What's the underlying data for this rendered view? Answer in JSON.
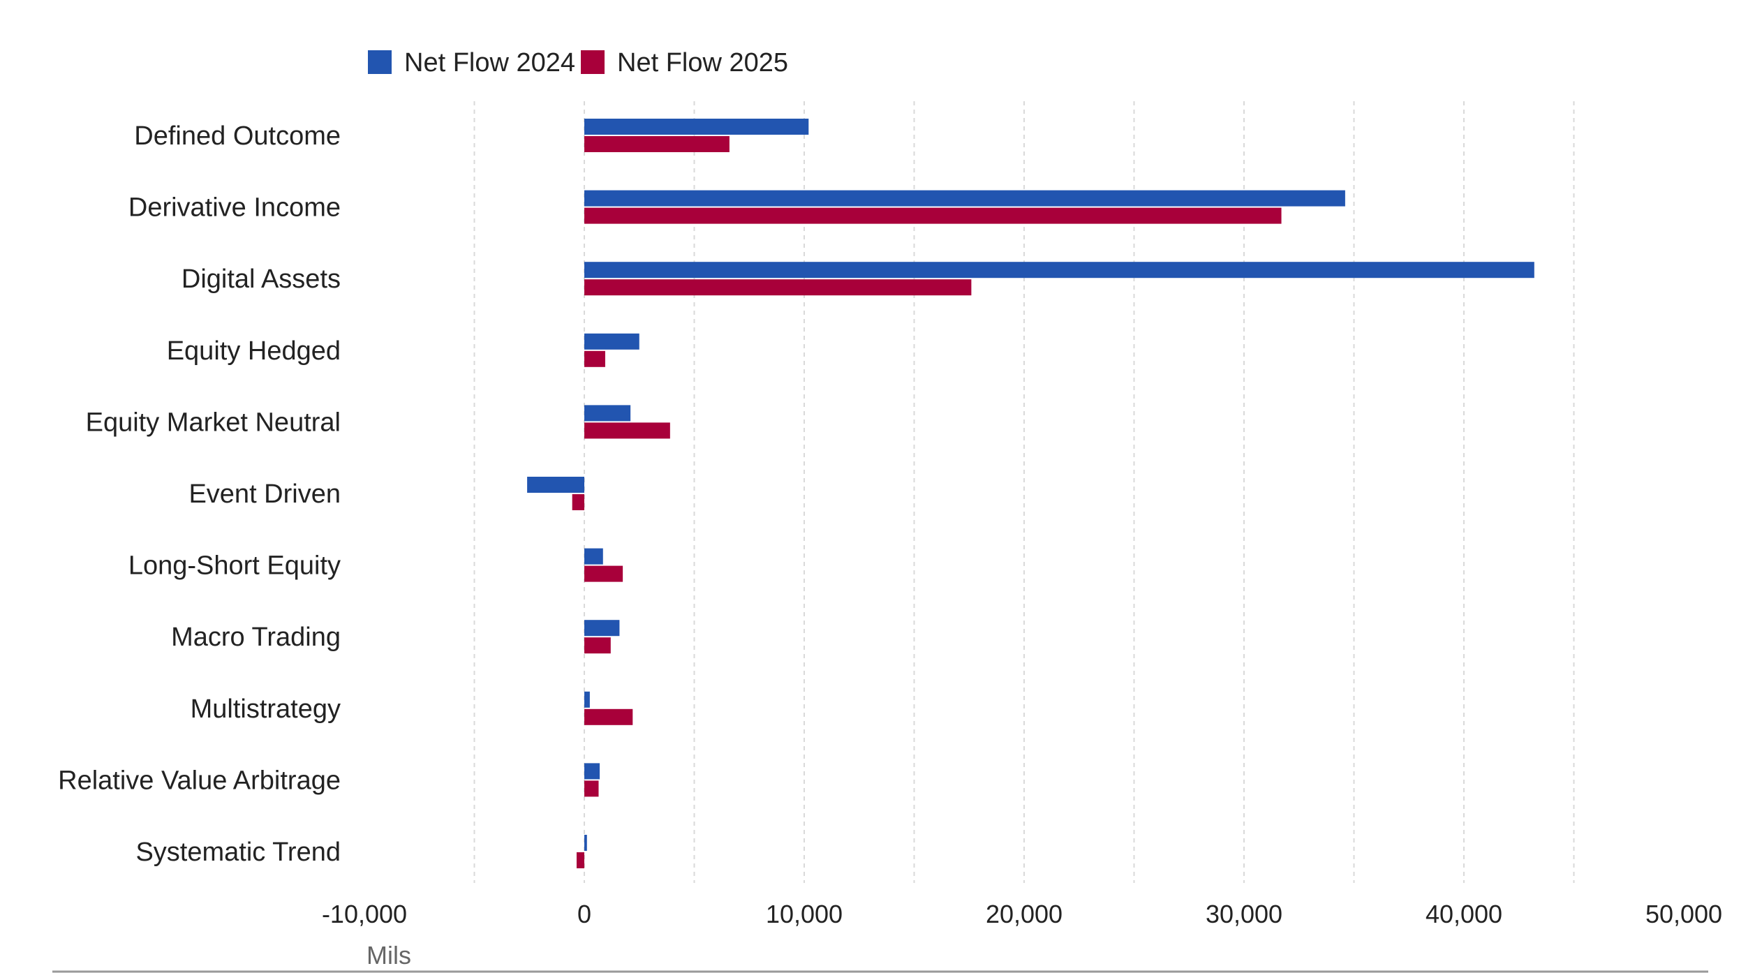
{
  "chart_data": {
    "type": "bar",
    "orientation": "horizontal",
    "categories": [
      "Defined Outcome",
      "Derivative Income",
      "Digital Assets",
      "Equity Hedged",
      "Equity Market Neutral",
      "Event Driven",
      "Long-Short Equity",
      "Macro Trading",
      "Multistrategy",
      "Relative Value Arbitrage",
      "Systematic Trend"
    ],
    "series": [
      {
        "name": "Net Flow 2024",
        "color": "#2255b0",
        "values": [
          10200,
          34600,
          43200,
          2500,
          2100,
          -2600,
          850,
          1600,
          250,
          700,
          120
        ]
      },
      {
        "name": "Net Flow 2025",
        "color": "#a8003a",
        "values": [
          6600,
          31700,
          17600,
          950,
          3900,
          -550,
          1750,
          1200,
          2200,
          650,
          -350
        ]
      }
    ],
    "x_ticks": [
      -10000,
      0,
      10000,
      20000,
      30000,
      40000,
      50000
    ],
    "x_tick_labels": [
      "-10,000",
      "0",
      "10,000",
      "20,000",
      "30,000",
      "40,000",
      "50,000"
    ],
    "xlim": [
      -10000,
      50000
    ],
    "xlabel": "Mils",
    "grid": "vertical dashed at every 5,000",
    "legend": "top-left"
  }
}
